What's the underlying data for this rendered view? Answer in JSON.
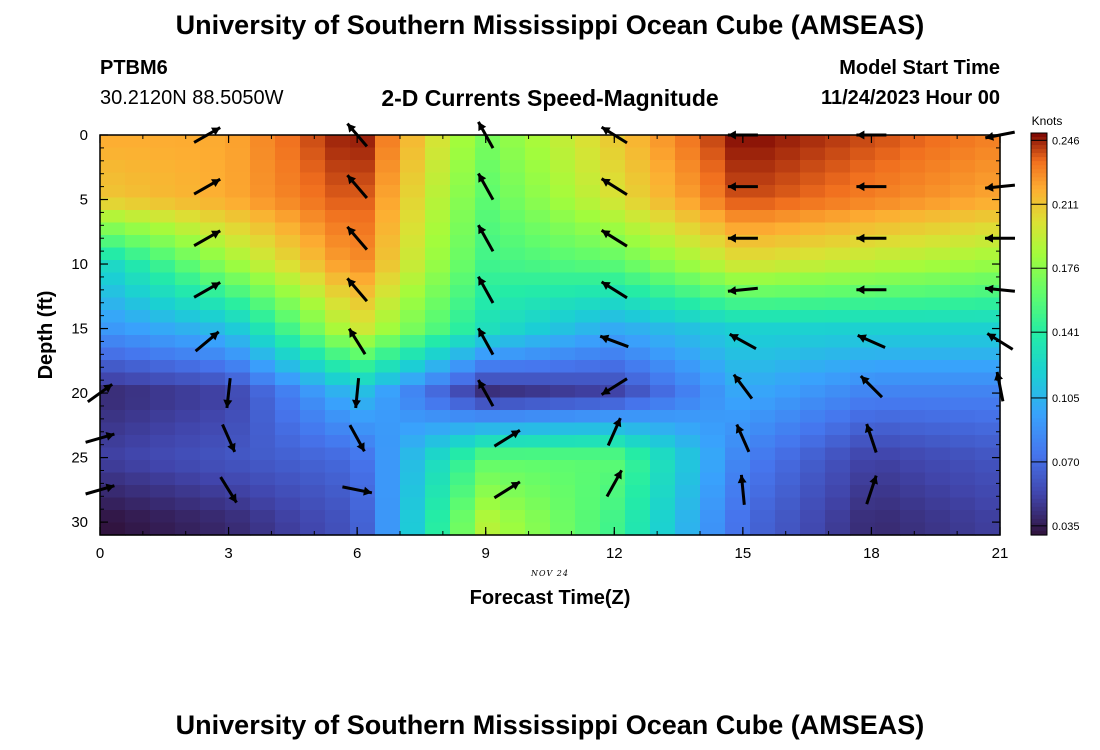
{
  "header": {
    "title": "University of Southern Mississippi Ocean Cube (AMSEAS)",
    "station_id": "PTBM6",
    "station_coords": "30.2120N  88.5050W",
    "plot_title": "2-D Currents Speed-Magnitude",
    "model_start_label": "Model Start Time",
    "model_start_value": "11/24/2023 Hour 00",
    "footer_title": "University of Southern Mississippi Ocean Cube (AMSEAS)"
  },
  "chart_data": {
    "type": "heatmap",
    "title": "2-D Currents Speed-Magnitude",
    "xlabel": "Forecast Time(Z)",
    "ylabel": "Depth (ft)",
    "date_label": "NOV 24",
    "x_ticks": [
      "0",
      "3",
      "6",
      "9",
      "12",
      "15",
      "18",
      "21"
    ],
    "y_ticks": [
      "0",
      "5",
      "10",
      "15",
      "20",
      "25",
      "30"
    ],
    "xlim": [
      0,
      21
    ],
    "ylim": [
      0,
      31
    ],
    "y_inverted": true,
    "colorbar": {
      "unit": "Knots",
      "min": 0.03,
      "max": 0.25,
      "labels": [
        "0.246",
        "0.211",
        "0.176",
        "0.141",
        "0.105",
        "0.070",
        "0.035"
      ],
      "label_values": [
        0.246,
        0.211,
        0.176,
        0.141,
        0.105,
        0.07,
        0.035
      ]
    },
    "speed_grid": {
      "x": [
        0,
        3,
        6,
        9,
        12,
        15,
        18,
        21
      ],
      "depth": [
        0,
        5,
        10,
        15,
        20,
        25,
        30
      ],
      "values": [
        [
          0.22,
          0.22,
          0.25,
          0.17,
          0.21,
          0.25,
          0.24,
          0.23
        ],
        [
          0.21,
          0.22,
          0.24,
          0.16,
          0.2,
          0.24,
          0.23,
          0.22
        ],
        [
          0.12,
          0.18,
          0.23,
          0.15,
          0.16,
          0.2,
          0.19,
          0.18
        ],
        [
          0.09,
          0.11,
          0.2,
          0.13,
          0.1,
          0.12,
          0.12,
          0.12
        ],
        [
          0.04,
          0.05,
          0.11,
          0.04,
          0.05,
          0.1,
          0.08,
          0.08
        ],
        [
          0.05,
          0.06,
          0.07,
          0.16,
          0.16,
          0.08,
          0.05,
          0.06
        ],
        [
          0.03,
          0.04,
          0.06,
          0.19,
          0.15,
          0.07,
          0.04,
          0.05
        ]
      ]
    },
    "vectors": [
      {
        "x": 2.5,
        "y": 0,
        "dx": 0.7,
        "dy": -0.4
      },
      {
        "x": 2.5,
        "y": 4,
        "dx": 0.7,
        "dy": -0.4
      },
      {
        "x": 2.5,
        "y": 8,
        "dx": 0.7,
        "dy": -0.4
      },
      {
        "x": 2.5,
        "y": 12,
        "dx": 0.7,
        "dy": -0.4
      },
      {
        "x": 2.5,
        "y": 16,
        "dx": 0.6,
        "dy": -0.5
      },
      {
        "x": 0,
        "y": 20,
        "dx": 0.7,
        "dy": -0.5
      },
      {
        "x": 3,
        "y": 20,
        "dx": -0.1,
        "dy": 0.9
      },
      {
        "x": 0,
        "y": 23.5,
        "dx": 0.7,
        "dy": -0.2
      },
      {
        "x": 3,
        "y": 23.5,
        "dx": 0.4,
        "dy": 0.9
      },
      {
        "x": 0,
        "y": 27.5,
        "dx": 0.7,
        "dy": -0.2
      },
      {
        "x": 3,
        "y": 27.5,
        "dx": 0.5,
        "dy": 0.8
      },
      {
        "x": 6,
        "y": 0,
        "dx": -0.6,
        "dy": -0.7
      },
      {
        "x": 6,
        "y": 4,
        "dx": -0.6,
        "dy": -0.7
      },
      {
        "x": 6,
        "y": 8,
        "dx": -0.6,
        "dy": -0.7
      },
      {
        "x": 6,
        "y": 12,
        "dx": -0.6,
        "dy": -0.7
      },
      {
        "x": 6,
        "y": 16,
        "dx": -0.5,
        "dy": -0.8
      },
      {
        "x": 6,
        "y": 20,
        "dx": -0.1,
        "dy": 1
      },
      {
        "x": 6,
        "y": 23.5,
        "dx": 0.5,
        "dy": 0.9
      },
      {
        "x": 6,
        "y": 27.5,
        "dx": 1,
        "dy": 0.2
      },
      {
        "x": 9,
        "y": 0,
        "dx": -0.5,
        "dy": -0.9
      },
      {
        "x": 9,
        "y": 4,
        "dx": -0.5,
        "dy": -0.9
      },
      {
        "x": 9,
        "y": 8,
        "dx": -0.5,
        "dy": -0.9
      },
      {
        "x": 9,
        "y": 12,
        "dx": -0.5,
        "dy": -0.9
      },
      {
        "x": 9,
        "y": 16,
        "dx": -0.5,
        "dy": -0.9
      },
      {
        "x": 9,
        "y": 20,
        "dx": -0.5,
        "dy": -0.9
      },
      {
        "x": 9.5,
        "y": 23.5,
        "dx": 0.8,
        "dy": -0.5
      },
      {
        "x": 9.5,
        "y": 27.5,
        "dx": 0.8,
        "dy": -0.5
      },
      {
        "x": 12,
        "y": 0,
        "dx": -0.8,
        "dy": -0.5
      },
      {
        "x": 12,
        "y": 4,
        "dx": -0.8,
        "dy": -0.5
      },
      {
        "x": 12,
        "y": 8,
        "dx": -0.8,
        "dy": -0.5
      },
      {
        "x": 12,
        "y": 12,
        "dx": -0.8,
        "dy": -0.5
      },
      {
        "x": 12,
        "y": 16,
        "dx": -0.8,
        "dy": -0.3
      },
      {
        "x": 12,
        "y": 19.5,
        "dx": -0.8,
        "dy": 0.5
      },
      {
        "x": 12,
        "y": 23,
        "dx": 0.4,
        "dy": -0.9
      },
      {
        "x": 12,
        "y": 27,
        "dx": 0.5,
        "dy": -0.9
      },
      {
        "x": 15,
        "y": 0,
        "dx": -1,
        "dy": 0
      },
      {
        "x": 15,
        "y": 4,
        "dx": -1,
        "dy": 0
      },
      {
        "x": 15,
        "y": 8,
        "dx": -1,
        "dy": 0
      },
      {
        "x": 15,
        "y": 12,
        "dx": -1,
        "dy": 0.1
      },
      {
        "x": 15,
        "y": 16,
        "dx": -0.9,
        "dy": -0.5
      },
      {
        "x": 15,
        "y": 19.5,
        "dx": -0.6,
        "dy": -0.8
      },
      {
        "x": 15,
        "y": 23.5,
        "dx": -0.4,
        "dy": -0.9
      },
      {
        "x": 15,
        "y": 27.5,
        "dx": -0.1,
        "dy": -1
      },
      {
        "x": 18,
        "y": 0,
        "dx": -1,
        "dy": 0
      },
      {
        "x": 18,
        "y": 4,
        "dx": -1,
        "dy": 0
      },
      {
        "x": 18,
        "y": 8,
        "dx": -1,
        "dy": 0
      },
      {
        "x": 18,
        "y": 12,
        "dx": -1,
        "dy": 0
      },
      {
        "x": 18,
        "y": 16,
        "dx": -0.9,
        "dy": -0.4
      },
      {
        "x": 18,
        "y": 19.5,
        "dx": -0.7,
        "dy": -0.7
      },
      {
        "x": 18,
        "y": 23.5,
        "dx": -0.3,
        "dy": -0.9
      },
      {
        "x": 18,
        "y": 27.5,
        "dx": 0.3,
        "dy": -0.9
      },
      {
        "x": 21,
        "y": 0,
        "dx": -1,
        "dy": 0.2
      },
      {
        "x": 21,
        "y": 4,
        "dx": -1,
        "dy": 0.1
      },
      {
        "x": 21,
        "y": 8,
        "dx": -1,
        "dy": 0
      },
      {
        "x": 21,
        "y": 12,
        "dx": -1,
        "dy": -0.1
      },
      {
        "x": 21,
        "y": 16,
        "dx": -0.8,
        "dy": -0.5
      },
      {
        "x": 21,
        "y": 19.5,
        "dx": -0.2,
        "dy": -1
      }
    ]
  }
}
